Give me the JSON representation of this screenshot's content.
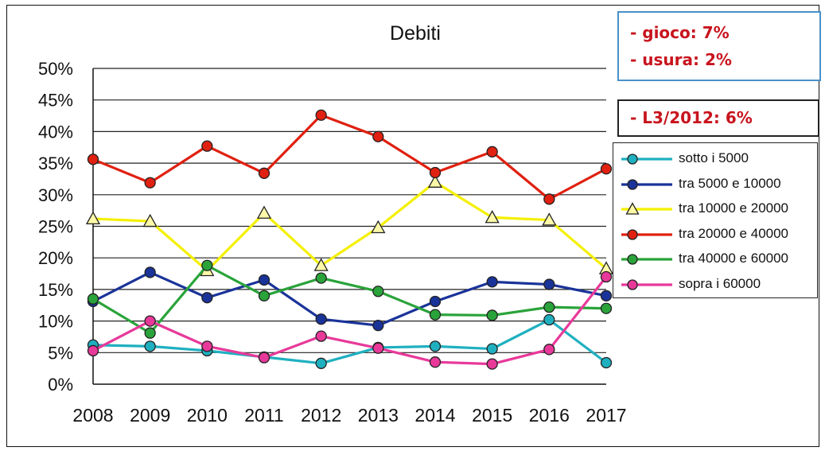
{
  "notes": {
    "box1": [
      "- gioco: 7%",
      "- usura: 2%"
    ],
    "box2": [
      "- L3/2012: 6%"
    ]
  },
  "chart_data": {
    "type": "line",
    "title": "Debiti",
    "xlabel": "",
    "ylabel": "",
    "x": [
      "2008",
      "2009",
      "2010",
      "2011",
      "2012",
      "2013",
      "2014",
      "2015",
      "2016",
      "2017"
    ],
    "ylim": [
      0,
      50
    ],
    "yticks": [
      "0%",
      "5%",
      "10%",
      "15%",
      "20%",
      "25%",
      "30%",
      "35%",
      "40%",
      "45%",
      "50%"
    ],
    "grid": true,
    "legend_position": "right",
    "series": [
      {
        "name": "sotto i 5000",
        "color": "#1fb0c0",
        "marker": "circle",
        "values": [
          6.2,
          6.0,
          5.3,
          4.3,
          3.3,
          5.8,
          6.0,
          5.6,
          10.2,
          3.4
        ]
      },
      {
        "name": "tra 5000 e 10000",
        "color": "#1a3399",
        "marker": "circle",
        "values": [
          13.1,
          17.7,
          13.7,
          16.5,
          10.3,
          9.3,
          13.1,
          16.2,
          15.8,
          14.0
        ]
      },
      {
        "name": "tra 10000 e 20000",
        "color": "#f4f000",
        "marker": "triangle",
        "values": [
          26.2,
          25.8,
          18.0,
          27.1,
          18.8,
          24.8,
          32.0,
          26.4,
          26.0,
          18.3
        ]
      },
      {
        "name": "tra 20000 e 40000",
        "color": "#e02010",
        "marker": "circle",
        "values": [
          35.6,
          31.9,
          37.7,
          33.4,
          42.6,
          39.2,
          33.5,
          36.8,
          29.3,
          34.1
        ]
      },
      {
        "name": "tra 40000 e 60000",
        "color": "#2aa33a",
        "marker": "circle",
        "values": [
          13.5,
          8.1,
          18.8,
          14.0,
          16.8,
          14.7,
          11.0,
          10.9,
          12.2,
          12.0
        ]
      },
      {
        "name": "sopra i 60000",
        "color": "#e8399a",
        "marker": "circle",
        "values": [
          5.3,
          10.0,
          6.0,
          4.2,
          7.6,
          5.7,
          3.5,
          3.2,
          5.5,
          17.0
        ]
      }
    ]
  }
}
